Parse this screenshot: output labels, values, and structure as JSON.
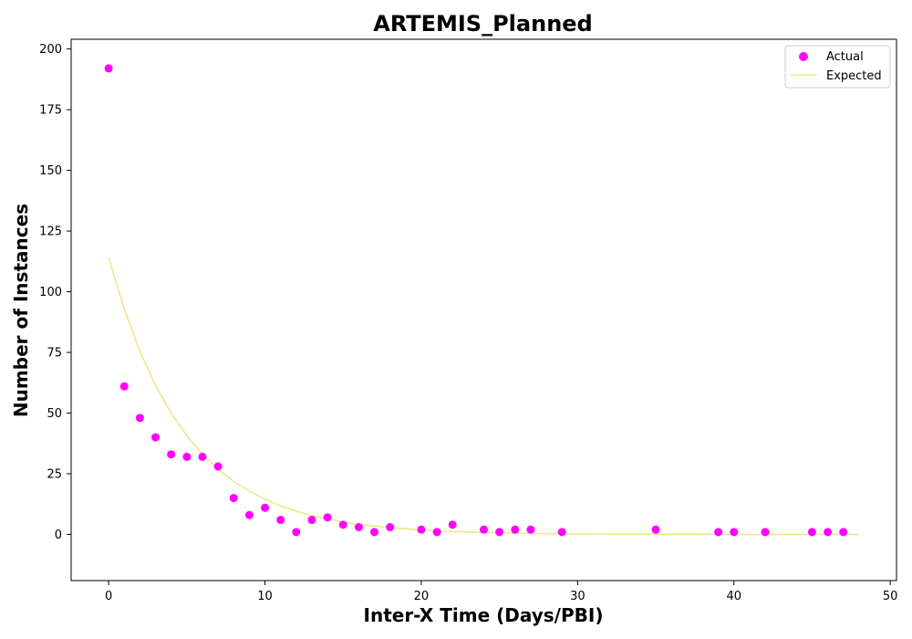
{
  "chart_data": {
    "type": "scatter",
    "title": "ARTEMIS_Planned",
    "xlabel": "Inter-X Time (Days/PBI)",
    "ylabel": "Number of Instances",
    "xlim": [
      -2.4,
      50.4
    ],
    "ylim": [
      -19,
      204
    ],
    "x_ticks": [
      0,
      10,
      20,
      30,
      40,
      50
    ],
    "y_ticks": [
      0,
      25,
      50,
      75,
      100,
      125,
      150,
      175,
      200
    ],
    "grid": false,
    "legend": {
      "placement": "top-right",
      "entries": [
        "Actual",
        "Expected"
      ]
    },
    "colors": {
      "actual": "#ff00ff",
      "expected": "#f0e68c"
    },
    "series": [
      {
        "name": "Actual",
        "kind": "scatter",
        "x": [
          0,
          1,
          2,
          3,
          4,
          5,
          6,
          7,
          8,
          9,
          10,
          11,
          12,
          13,
          14,
          15,
          16,
          17,
          18,
          20,
          21,
          22,
          24,
          25,
          26,
          27,
          29,
          35,
          39,
          40,
          42,
          45,
          46,
          47
        ],
        "y": [
          192,
          61,
          48,
          40,
          33,
          32,
          32,
          28,
          15,
          8,
          11,
          6,
          1,
          6,
          7,
          4,
          3,
          1,
          3,
          2,
          1,
          4,
          2,
          1,
          2,
          2,
          1,
          2,
          1,
          1,
          1,
          1,
          1,
          1
        ]
      },
      {
        "name": "Expected",
        "kind": "line",
        "x": [
          0,
          1,
          2,
          3,
          4,
          5,
          6,
          7,
          8,
          9,
          10,
          11,
          12,
          13,
          14,
          15,
          16,
          17,
          18,
          19,
          20,
          21,
          22,
          23,
          24,
          25,
          26,
          27,
          28,
          29,
          30,
          31,
          32,
          33,
          34,
          35,
          36,
          37,
          38,
          39,
          40,
          41,
          42,
          43,
          44,
          45,
          46,
          47,
          48
        ],
        "y": [
          114,
          92.8,
          75.5,
          61.4,
          50.0,
          40.7,
          33.1,
          26.9,
          21.9,
          17.8,
          14.5,
          11.8,
          9.6,
          7.8,
          6.4,
          5.2,
          4.2,
          3.4,
          2.8,
          2.3,
          1.8,
          1.5,
          1.2,
          1.0,
          0.8,
          0.7,
          0.5,
          0.45,
          0.36,
          0.3,
          0.24,
          0.2,
          0.16,
          0.13,
          0.1,
          0.09,
          0.07,
          0.06,
          0.05,
          0.04,
          0.03,
          0.03,
          0.02,
          0.02,
          0.01,
          0.01,
          0.01,
          0.01,
          0.01
        ]
      }
    ]
  }
}
